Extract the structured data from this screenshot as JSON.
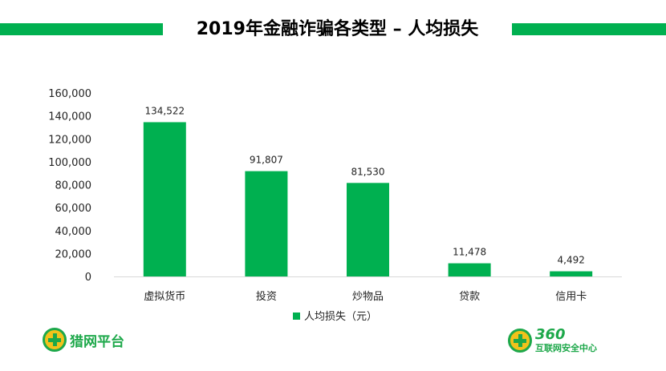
{
  "colors": {
    "accent": "#00b050",
    "axis": "#d9d9d9",
    "text": "#222222"
  },
  "title": "2019年金融诈骗各类型 – 人均损失",
  "chart_data": {
    "type": "bar",
    "title": "2019年金融诈骗各类型 – 人均损失",
    "categories": [
      "虚拟货币",
      "投资",
      "炒物品",
      "贷款",
      "信用卡"
    ],
    "series": [
      {
        "name": "人均损失（元）",
        "values": [
          134522,
          91807,
          81530,
          11478,
          4492
        ]
      }
    ],
    "data_labels": [
      "134,522",
      "91,807",
      "81,530",
      "11,478",
      "4,492"
    ],
    "y_ticks": [
      0,
      20000,
      40000,
      60000,
      80000,
      100000,
      120000,
      140000,
      160000
    ],
    "y_tick_labels": [
      "0",
      "20,000",
      "40,000",
      "60,000",
      "80,000",
      "100,000",
      "120,000",
      "140,000",
      "160,000"
    ],
    "ylim": [
      0,
      160000
    ],
    "xlabel": "",
    "ylabel": "",
    "grid": false,
    "legend": {
      "position": "bottom",
      "label": "人均损失（元）"
    }
  },
  "logos": {
    "left": {
      "text": "猎网平台",
      "icon": "shield-plus-icon"
    },
    "right": {
      "number": "360",
      "text": "互联网安全中心",
      "icon": "shield-plus-icon"
    }
  }
}
